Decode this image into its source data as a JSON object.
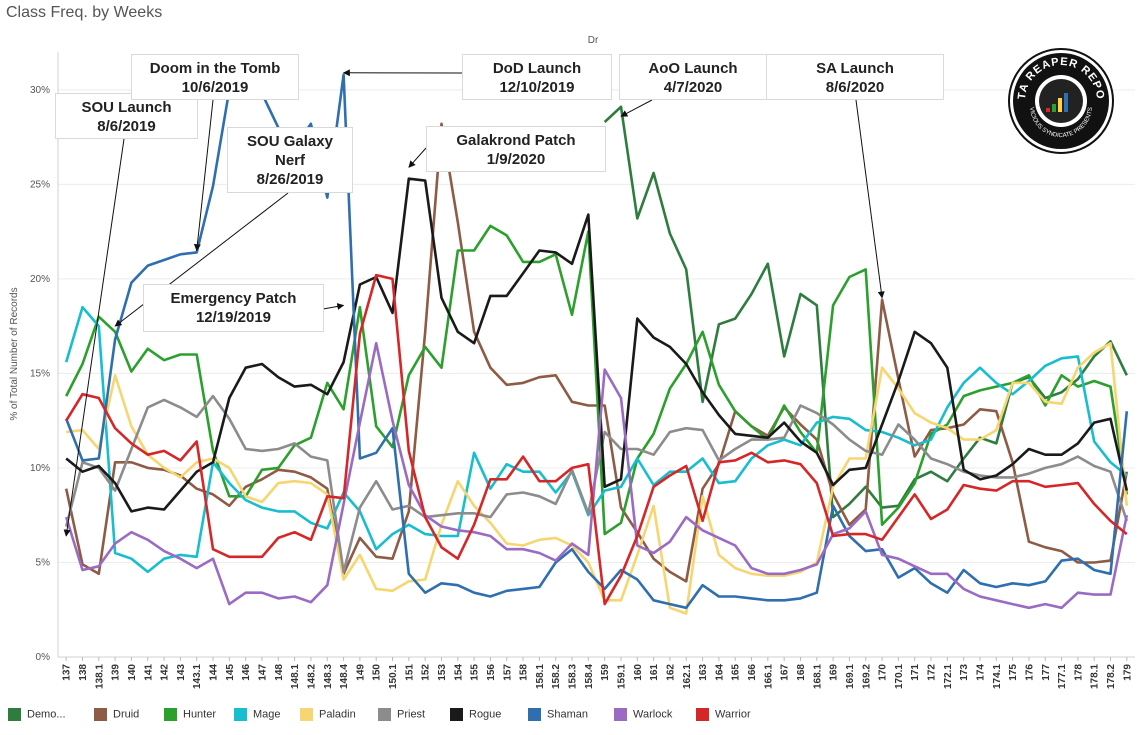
{
  "title": "Class Freq. by Weeks",
  "chart_data": {
    "type": "line",
    "header_label": "Dr",
    "ylabel": "% of Total Number of Records",
    "xlabel": "",
    "ylim": [
      0,
      32
    ],
    "yticks": [
      "0%",
      "5%",
      "10%",
      "15%",
      "20%",
      "25%",
      "30%"
    ],
    "ytick_values": [
      0,
      5,
      10,
      15,
      20,
      25,
      30
    ],
    "grid": "horizontal",
    "legend_position": "bottom",
    "categories": [
      "137",
      "138",
      "138.1",
      "139",
      "140",
      "141",
      "142",
      "143",
      "143.1",
      "144",
      "145",
      "146",
      "147",
      "148",
      "148.1",
      "148.2",
      "148.3",
      "148.4",
      "149",
      "150",
      "150.1",
      "151",
      "152",
      "153",
      "154",
      "155",
      "156",
      "157",
      "158",
      "158.1",
      "158.2",
      "158.3",
      "158.4",
      "159",
      "159.1",
      "160",
      "161",
      "162",
      "162.1",
      "163",
      "164",
      "165",
      "166",
      "166.1",
      "167",
      "168",
      "168.1",
      "169",
      "169.1",
      "169.2",
      "170",
      "170.1",
      "171",
      "172",
      "172.1",
      "173",
      "174",
      "174.1",
      "175",
      "176",
      "177",
      "177.1",
      "178",
      "178.1",
      "178.2",
      "179"
    ],
    "series": [
      {
        "name": "Demo...",
        "color": "#2e7d3e",
        "values": [
          null,
          null,
          null,
          null,
          null,
          null,
          null,
          null,
          null,
          null,
          null,
          null,
          null,
          null,
          null,
          null,
          null,
          null,
          null,
          null,
          null,
          null,
          null,
          null,
          null,
          null,
          null,
          null,
          null,
          null,
          null,
          null,
          null,
          28.3,
          29.1,
          23.2,
          25.6,
          22.4,
          20.5,
          13.5,
          17.6,
          17.9,
          19.2,
          20.8,
          15.9,
          19.2,
          18.6,
          7.4,
          8.1,
          9.0,
          7.9,
          8.0,
          9.4,
          9.8,
          9.3,
          10.5,
          11.6,
          11.3,
          14.5,
          14.8,
          13.7,
          14.0,
          14.7,
          15.9,
          16.7,
          14.9
        ]
      },
      {
        "name": "Druid",
        "color": "#8e5b45",
        "values": [
          8.9,
          4.9,
          4.4,
          10.3,
          10.3,
          10.0,
          9.9,
          9.6,
          8.9,
          8.6,
          8.0,
          9.0,
          9.4,
          9.9,
          9.8,
          9.5,
          8.9,
          4.4,
          6.3,
          5.3,
          5.2,
          7.7,
          17.2,
          28.2,
          23.0,
          17.2,
          15.3,
          14.4,
          14.5,
          14.8,
          14.9,
          13.5,
          13.3,
          13.3,
          7.9,
          6.6,
          5.2,
          4.5,
          4.0,
          8.9,
          10.2,
          13.0,
          12.2,
          11.7,
          13.2,
          12.3,
          11.5,
          8.6,
          7.0,
          7.8,
          18.9,
          14.7,
          10.6,
          12.0,
          12.1,
          12.3,
          13.1,
          13.0,
          10.3,
          6.1,
          5.8,
          5.6,
          5.0,
          5.0,
          5.1,
          9.8
        ]
      },
      {
        "name": "Hunter",
        "color": "#2ca02c",
        "values": [
          13.8,
          15.5,
          18.0,
          17.2,
          15.1,
          16.3,
          15.7,
          16.0,
          16.0,
          10.9,
          8.5,
          8.5,
          9.9,
          10.0,
          11.2,
          11.6,
          14.5,
          13.1,
          18.5,
          12.2,
          11.1,
          14.9,
          16.4,
          15.3,
          21.5,
          21.5,
          22.8,
          22.3,
          20.9,
          20.9,
          21.3,
          18.1,
          22.5,
          6.5,
          7.1,
          10.5,
          11.8,
          14.2,
          15.5,
          17.2,
          14.4,
          13.0,
          12.2,
          11.5,
          13.3,
          11.9,
          10.8,
          18.6,
          20.1,
          20.5,
          7.0,
          7.9,
          9.2,
          11.8,
          12.3,
          13.8,
          14.1,
          14.3,
          14.5,
          14.9,
          13.3,
          14.9,
          14.3,
          14.6,
          14.3,
          8.6
        ]
      },
      {
        "name": "Mage",
        "color": "#17becf",
        "values": [
          15.6,
          18.5,
          17.5,
          5.5,
          5.2,
          4.5,
          5.2,
          5.4,
          5.3,
          10.3,
          9.2,
          8.3,
          7.9,
          7.7,
          7.7,
          7.1,
          6.8,
          8.7,
          7.7,
          5.7,
          6.5,
          7.0,
          6.5,
          6.4,
          6.4,
          10.8,
          8.9,
          10.2,
          9.8,
          9.8,
          8.7,
          9.8,
          7.5,
          8.8,
          9.0,
          10.5,
          9.1,
          9.8,
          9.8,
          10.5,
          9.2,
          9.3,
          10.5,
          11.2,
          11.5,
          11.2,
          12.4,
          12.7,
          12.6,
          12.0,
          11.9,
          11.6,
          11.2,
          11.5,
          13.2,
          14.5,
          15.3,
          14.5,
          13.9,
          14.6,
          15.4,
          15.8,
          15.9,
          11.4,
          10.3,
          9.6
        ]
      },
      {
        "name": "Paladin",
        "color": "#f7d570",
        "values": [
          11.9,
          12.0,
          11.0,
          14.9,
          12.2,
          10.7,
          10.0,
          9.5,
          10.3,
          10.5,
          10.0,
          8.5,
          8.2,
          9.2,
          9.3,
          9.2,
          8.6,
          4.1,
          5.4,
          3.6,
          3.5,
          4.0,
          4.1,
          7.0,
          9.3,
          8.0,
          7.1,
          6.0,
          5.9,
          6.2,
          6.3,
          5.9,
          5.0,
          3.0,
          3.0,
          5.4,
          8.0,
          2.6,
          2.3,
          8.5,
          5.4,
          4.7,
          4.4,
          4.3,
          4.3,
          4.5,
          5.0,
          9.0,
          10.5,
          10.5,
          15.3,
          14.2,
          12.9,
          12.4,
          12.1,
          11.5,
          11.5,
          12.0,
          14.5,
          14.5,
          13.5,
          13.4,
          15.3,
          16.1,
          16.6,
          8.0
        ]
      },
      {
        "name": "Priest",
        "color": "#8c8c8c",
        "values": [
          6.9,
          10.3,
          10.0,
          8.8,
          11.0,
          13.2,
          13.6,
          13.2,
          12.7,
          13.8,
          12.6,
          11.0,
          10.9,
          11.0,
          11.3,
          10.6,
          10.4,
          4.5,
          7.9,
          9.3,
          7.8,
          8.0,
          7.4,
          7.5,
          7.6,
          7.6,
          7.4,
          8.6,
          8.7,
          8.5,
          8.1,
          9.9,
          7.6,
          11.9,
          11.0,
          11.0,
          10.7,
          11.9,
          12.1,
          12.0,
          10.4,
          11.0,
          11.5,
          11.5,
          11.6,
          13.3,
          12.9,
          12.3,
          11.5,
          10.9,
          10.7,
          12.3,
          11.5,
          10.5,
          10.2,
          9.8,
          9.6,
          9.5,
          9.5,
          9.7,
          10.0,
          10.2,
          10.6,
          10.1,
          9.8,
          7.2
        ]
      },
      {
        "name": "Rogue",
        "color": "#1a1a1a",
        "values": [
          10.5,
          9.8,
          10.1,
          9.2,
          7.7,
          7.9,
          7.8,
          8.8,
          9.8,
          10.3,
          13.7,
          15.3,
          15.5,
          14.8,
          14.3,
          14.4,
          13.9,
          15.6,
          19.7,
          20.1,
          18.2,
          25.3,
          25.2,
          19.0,
          17.2,
          16.6,
          19.1,
          19.1,
          20.3,
          21.5,
          21.4,
          20.8,
          23.4,
          9.0,
          9.4,
          17.9,
          16.9,
          16.4,
          15.5,
          14.0,
          12.8,
          11.8,
          11.7,
          11.6,
          12.4,
          11.4,
          10.8,
          9.1,
          9.9,
          10.0,
          12.3,
          14.6,
          17.2,
          16.6,
          15.3,
          9.9,
          9.4,
          9.6,
          10.2,
          11.0,
          10.7,
          10.7,
          11.3,
          12.4,
          12.6,
          8.8
        ]
      },
      {
        "name": "Shaman",
        "color": "#2f6fb0",
        "values": [
          12.6,
          10.4,
          10.5,
          16.8,
          19.8,
          20.7,
          21.0,
          21.3,
          21.4,
          24.9,
          30.0,
          30.3,
          29.8,
          28.0,
          27.0,
          28.2,
          24.3,
          30.8,
          10.5,
          10.8,
          12.1,
          4.4,
          3.4,
          3.9,
          3.8,
          3.4,
          3.2,
          3.5,
          3.6,
          3.7,
          5.0,
          5.7,
          4.5,
          3.6,
          4.6,
          4.1,
          3.0,
          2.8,
          2.6,
          3.8,
          3.2,
          3.2,
          3.1,
          3.0,
          3.0,
          3.1,
          3.4,
          8.0,
          6.4,
          5.6,
          5.7,
          4.2,
          4.7,
          3.9,
          3.4,
          4.6,
          3.9,
          3.7,
          3.9,
          3.8,
          4.0,
          5.1,
          5.2,
          4.6,
          4.4,
          13.0
        ]
      },
      {
        "name": "Warlock",
        "color": "#9b6bc4",
        "values": [
          7.4,
          4.6,
          4.8,
          6.0,
          6.6,
          6.2,
          5.6,
          5.2,
          4.7,
          5.2,
          2.8,
          3.4,
          3.4,
          3.1,
          3.2,
          2.9,
          3.8,
          8.1,
          12.4,
          16.6,
          12.5,
          9.1,
          7.5,
          6.9,
          6.7,
          6.6,
          6.4,
          5.7,
          5.7,
          5.5,
          5.1,
          6.0,
          5.4,
          15.2,
          13.7,
          5.9,
          5.5,
          6.1,
          7.4,
          6.7,
          6.3,
          5.9,
          4.7,
          4.4,
          4.4,
          4.6,
          4.9,
          6.5,
          6.8,
          7.7,
          5.4,
          5.2,
          4.8,
          4.4,
          4.4,
          3.6,
          3.2,
          3.0,
          2.8,
          2.6,
          2.8,
          2.6,
          3.4,
          3.3,
          3.3,
          7.5
        ]
      },
      {
        "name": "Warrior",
        "color": "#d62728",
        "values": [
          12.5,
          13.9,
          13.7,
          12.1,
          11.3,
          10.7,
          10.9,
          10.4,
          11.4,
          5.7,
          5.3,
          5.3,
          5.3,
          6.3,
          6.6,
          6.2,
          8.5,
          8.4,
          17.1,
          20.2,
          20.0,
          10.9,
          7.4,
          5.8,
          5.2,
          7.0,
          9.4,
          9.4,
          10.6,
          9.3,
          9.3,
          10.0,
          10.2,
          2.8,
          4.3,
          6.4,
          9.0,
          9.6,
          10.1,
          7.2,
          10.3,
          10.4,
          10.8,
          10.3,
          10.4,
          10.2,
          9.2,
          6.4,
          6.5,
          6.5,
          6.2,
          7.4,
          8.6,
          7.3,
          7.8,
          9.1,
          8.9,
          8.8,
          9.3,
          9.3,
          9.0,
          9.1,
          9.2,
          8.1,
          7.2,
          6.5
        ]
      }
    ],
    "annotations": [
      {
        "line1": "SOU Launch",
        "line2": "8/6/2019",
        "target": [
          137,
          6.4
        ]
      },
      {
        "line1": "Doom in the Tomb",
        "line2": "10/6/2019",
        "target": [
          143.1,
          21.5
        ]
      },
      {
        "line1": "SOU Galaxy",
        "line2": "Nerf",
        "line3": "8/26/2019",
        "target": [
          139,
          17.5
        ]
      },
      {
        "line1": "Emergency Patch",
        "line2": "12/19/2019",
        "target": [
          148.4,
          18.6
        ]
      },
      {
        "line1": "DoD Launch",
        "line2": "12/10/2019",
        "target": [
          148.4,
          30.9
        ]
      },
      {
        "line1": "Galakrond Patch",
        "line2": "1/9/2020",
        "target": [
          151,
          25.9
        ]
      },
      {
        "line1": "AoO Launch",
        "line2": "4/7/2020",
        "target": [
          159.1,
          28.6
        ]
      },
      {
        "line1": "SA Launch",
        "line2": "8/6/2020",
        "target": [
          170,
          19.0
        ]
      }
    ]
  },
  "logo": {
    "text_top": "DATA REAPER REPORT",
    "text_bottom": "VICIOUS SYNDICATE PRESENTS"
  }
}
